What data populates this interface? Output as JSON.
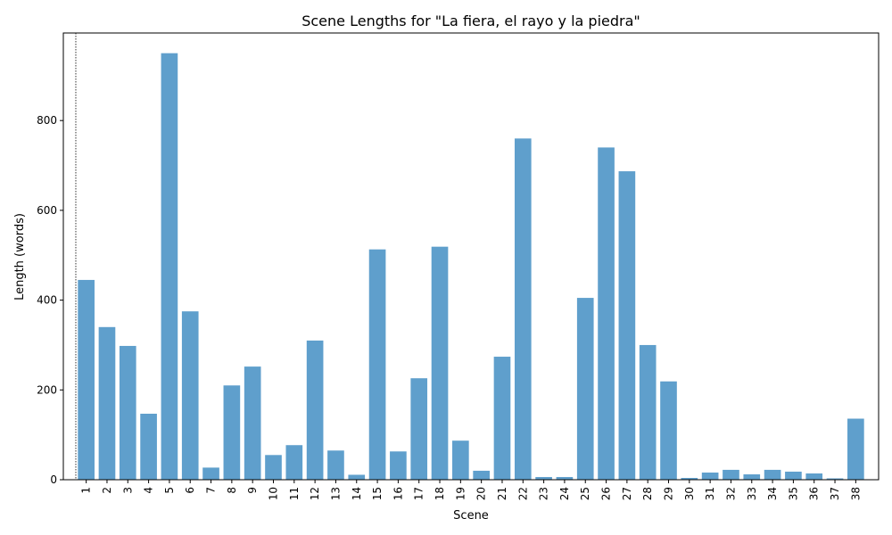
{
  "chart_data": {
    "type": "bar",
    "title": "Scene Lengths for \"La fiera, el rayo y la piedra\"",
    "xlabel": "Scene",
    "ylabel": "Length (words)",
    "categories": [
      "1",
      "2",
      "3",
      "4",
      "5",
      "6",
      "7",
      "8",
      "9",
      "10",
      "11",
      "12",
      "13",
      "14",
      "15",
      "16",
      "17",
      "18",
      "19",
      "20",
      "21",
      "22",
      "23",
      "24",
      "25",
      "26",
      "27",
      "28",
      "29",
      "30",
      "31",
      "32",
      "33",
      "34",
      "35",
      "36",
      "37",
      "38"
    ],
    "values": [
      445,
      340,
      298,
      147,
      950,
      375,
      27,
      210,
      252,
      55,
      77,
      310,
      65,
      11,
      513,
      63,
      226,
      519,
      87,
      20,
      274,
      760,
      6,
      6,
      405,
      740,
      687,
      300,
      219,
      4,
      16,
      22,
      12,
      22,
      18,
      14,
      3,
      136
    ],
    "ylim": [
      0,
      995
    ],
    "yticks": [
      0,
      200,
      400,
      600,
      800
    ],
    "bar_color": "#5f9fcc",
    "grid": false,
    "vline_at_category": "1"
  }
}
